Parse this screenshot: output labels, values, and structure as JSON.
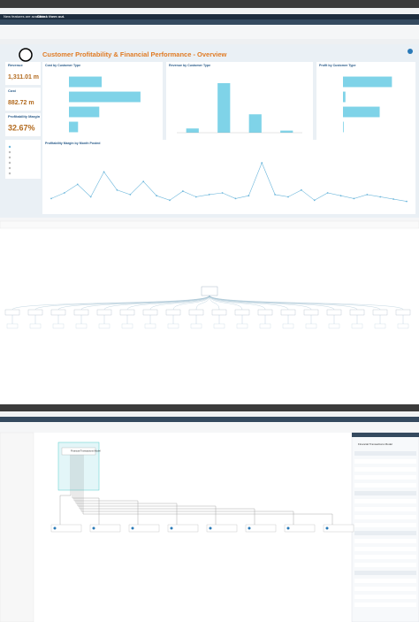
{
  "browser_top": {
    "banner": "New features are available.",
    "banner_link": "Check them out."
  },
  "dashboard": {
    "title": "Customer Profitability & Financial Performance - Overview",
    "kpis": [
      {
        "label": "Revenue",
        "value": "1,311.01 m"
      },
      {
        "label": "Cost",
        "value": "882.72 m"
      },
      {
        "label": "Profitability Margin",
        "value": "32.67%"
      }
    ],
    "charts": [
      {
        "type": "hbar",
        "title": "Cost by Customer Type",
        "categories": [
          null,
          null,
          null,
          null
        ],
        "values": [
          270,
          590,
          250,
          75
        ],
        "xlim": [
          0,
          700
        ],
        "color": "#7fd3e8"
      },
      {
        "type": "bar",
        "title": "Revenue by Customer Type",
        "categories": [
          null,
          null,
          null,
          null
        ],
        "values": [
          60,
          700,
          260,
          30
        ],
        "ylim": [
          0,
          800
        ],
        "color": "#7fd3e8"
      },
      {
        "type": "hbar",
        "title": "Profit by Customer Type",
        "categories": [
          null,
          null,
          null,
          null
        ],
        "values": [
          200,
          10,
          150,
          3
        ],
        "xlim": [
          0,
          260
        ],
        "color": "#7fd3e8"
      },
      {
        "type": "line",
        "title": "Profitability Margin by Month Posted",
        "values": [
          15,
          25,
          40,
          18,
          62,
          30,
          22,
          45,
          20,
          12,
          28,
          18,
          22,
          25,
          15,
          20,
          78,
          22,
          18,
          30,
          12,
          25,
          20,
          15,
          22,
          18,
          14,
          10
        ],
        "ylim": [
          0,
          100
        ],
        "color": "#6fb8dc"
      }
    ]
  },
  "model_editor": {
    "model_name": "Financial Transactions Model"
  }
}
